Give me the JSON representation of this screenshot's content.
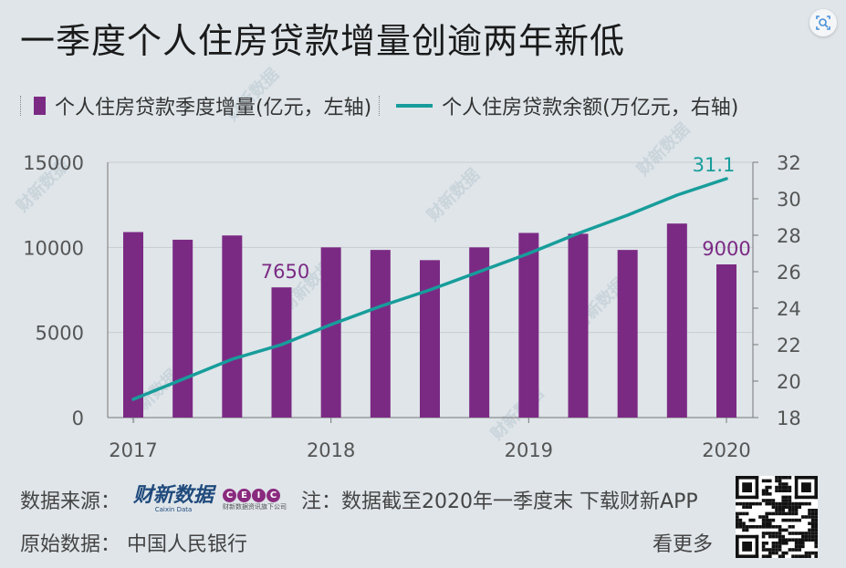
{
  "title": "一季度个人住房贷款增量创逾两年新低",
  "legend": {
    "bar_label": "个人住房贷款季度增量(亿元，左轴)",
    "line_label": "个人住房贷款余额(万亿元，右轴)"
  },
  "colors": {
    "bar": "#7b2a84",
    "line": "#179d9b",
    "axis": "#555555"
  },
  "chart_data": {
    "type": "bar+line",
    "title": "一季度个人住房贷款增量创逾两年新低",
    "categories": [
      "2017Q1",
      "2017Q2",
      "2017Q3",
      "2017Q4",
      "2018Q1",
      "2018Q2",
      "2018Q3",
      "2018Q4",
      "2019Q1",
      "2019Q2",
      "2019Q3",
      "2019Q4",
      "2020Q1"
    ],
    "x_tick_labels": [
      "2017",
      "2018",
      "2019",
      "2020"
    ],
    "x_tick_category_index": [
      0,
      4,
      8,
      12
    ],
    "series": [
      {
        "name": "个人住房贷款季度增量(亿元，左轴)",
        "type": "bar",
        "axis": "left",
        "values": [
          10900,
          10450,
          10700,
          7650,
          10000,
          9850,
          9250,
          10000,
          10850,
          10800,
          9850,
          11400,
          9000
        ]
      },
      {
        "name": "个人住房贷款余额(万亿元，右轴)",
        "type": "line",
        "axis": "right",
        "values": [
          19.0,
          20.1,
          21.2,
          22.0,
          23.1,
          24.1,
          25.0,
          26.0,
          27.0,
          28.1,
          29.1,
          30.2,
          31.1
        ]
      }
    ],
    "y_left": {
      "min": 0,
      "max": 15000,
      "ticks": [
        "0",
        "5000",
        "10000",
        "15000"
      ]
    },
    "y_right": {
      "min": 18,
      "max": 32,
      "ticks": [
        "18",
        "20",
        "22",
        "24",
        "26",
        "28",
        "30",
        "32"
      ]
    },
    "annotations": [
      {
        "series": 0,
        "index": 3,
        "text": "7650"
      },
      {
        "series": 0,
        "index": 12,
        "text": "9000"
      },
      {
        "series": 1,
        "index": 12,
        "text": "31.1"
      }
    ],
    "grid": true
  },
  "footer": {
    "source_label": "数据来源：",
    "caixin_logo": "财新数据",
    "caixin_sub": "Caixin Data",
    "ceic_letters": [
      "C",
      "E",
      "I",
      "C"
    ],
    "ceic_sub": "财新数据资讯旗下公司",
    "note": "注：数据截至2020年一季度末 下载财新APP",
    "original_label": "原始数据：",
    "original_source": "中国人民银行",
    "more": "看更多"
  },
  "watermark": "财新数据"
}
